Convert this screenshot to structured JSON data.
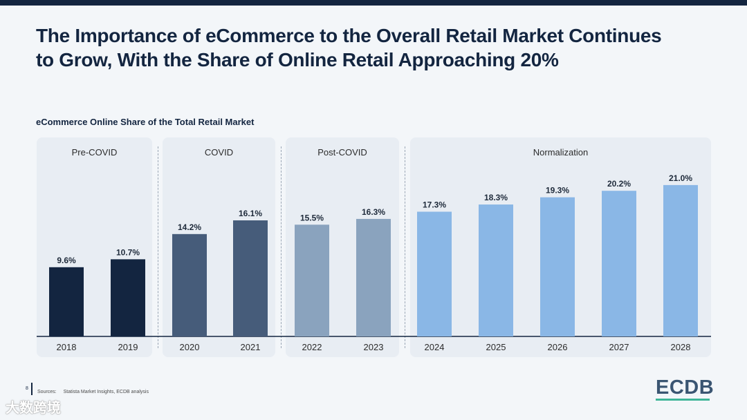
{
  "title": {
    "line1": "The Importance of eCommerce to the Overall Retail Market Continues",
    "line2": "to Grow, With the Share of Online Retail Approaching 20%"
  },
  "colors": {
    "pre_covid": "#132540",
    "covid": "#465c7a",
    "post_covid": "#8aa3be",
    "normalization": "#8ab7e6",
    "accent": "#3fb598"
  },
  "chart_data": {
    "type": "bar",
    "title": "eCommerce Online Share of the Total Retail Market",
    "categories": [
      "2018",
      "2019",
      "2020",
      "2021",
      "2022",
      "2023",
      "2024",
      "2025",
      "2026",
      "2027",
      "2028"
    ],
    "values": [
      9.6,
      10.7,
      14.2,
      16.1,
      15.5,
      16.3,
      17.3,
      18.3,
      19.3,
      20.2,
      21.0
    ],
    "value_labels": [
      "9.6%",
      "10.7%",
      "14.2%",
      "16.1%",
      "15.5%",
      "16.3%",
      "17.3%",
      "18.3%",
      "19.3%",
      "20.2%",
      "21.0%"
    ],
    "unit": "%",
    "ylim": [
      0,
      23
    ],
    "periods": [
      {
        "label": "Pre-COVID",
        "categories": [
          "2018",
          "2019"
        ],
        "color_key": "pre_covid"
      },
      {
        "label": "COVID",
        "categories": [
          "2020",
          "2021"
        ],
        "color_key": "covid"
      },
      {
        "label": "Post-COVID",
        "categories": [
          "2022",
          "2023"
        ],
        "color_key": "post_covid"
      },
      {
        "label": "Normalization",
        "categories": [
          "2024",
          "2025",
          "2026",
          "2027",
          "2028"
        ],
        "color_key": "normalization"
      }
    ]
  },
  "footer": {
    "page_number": "8",
    "sources_label": "Sources:",
    "sources_text": "Statista Market Insights, ECDB analysis",
    "logo": "ECDB",
    "watermark": "大数跨境"
  }
}
